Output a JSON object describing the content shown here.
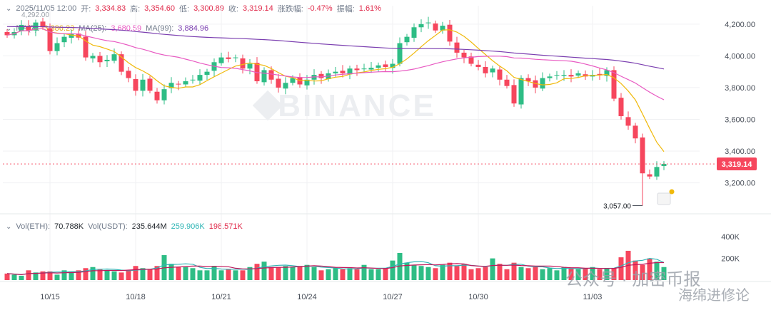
{
  "ohlc_header": {
    "datetime": "2025/11/05 12:00",
    "open_label": "开:",
    "open": "3,334.83",
    "high_label": "高:",
    "high": "3,354.60",
    "low_label": "低:",
    "low": "3,300.89",
    "close_label": "收:",
    "close": "3,319.14",
    "change_label": "涨跌幅:",
    "change": "-0.47%",
    "amplitude_label": "振幅:",
    "amplitude": "1.61%"
  },
  "ma_header": {
    "ma7_label": "MA(7):",
    "ma7": "3,386.23",
    "ma25_label": "MA(25):",
    "ma25": "3,680.59",
    "ma99_label": "MA(99):",
    "ma99": "3,884.96"
  },
  "vol_header": {
    "vol_eth_label": "Vol(ETH):",
    "vol_eth": "70.788K",
    "vol_usdt_label": "Vol(USDT):",
    "vol_usdt": "235.644M",
    "vol_ma1": "259.906K",
    "vol_ma2": "198.571K"
  },
  "watermark": "BINANCE",
  "overlay_watermark": {
    "left": "公众号 · 加密币报",
    "right": "海绵进修论"
  },
  "colors": {
    "up": "#2ebd85",
    "down": "#f6465d",
    "ma7": "#f0b90b",
    "ma25": "#e85ac2",
    "ma99": "#7b3fb0",
    "last_price_bg": "#f6465d"
  },
  "chart_data": {
    "type": "candlestick",
    "interval": "12h",
    "y_ticks": [
      "4,200.00",
      "4,000.00",
      "3,800.00",
      "3,600.00",
      "3,400.00",
      "3,200.00"
    ],
    "ylim": [
      3050,
      4280
    ],
    "volume_ticks": [
      "400K",
      "200K"
    ],
    "volume_ylim": [
      0,
      480
    ],
    "x_ticks": [
      {
        "label": "10/15",
        "index": 6
      },
      {
        "label": "10/18",
        "index": 18
      },
      {
        "label": "10/21",
        "index": 30
      },
      {
        "label": "10/24",
        "index": 42
      },
      {
        "label": "10/27",
        "index": 54
      },
      {
        "label": "10/30",
        "index": 66
      },
      {
        "label": "11/03",
        "index": 82
      }
    ],
    "last_price": "3,319.14",
    "last_price_value": 3319.14,
    "min_marker": "3,057.00",
    "min_marker_value": 3057,
    "min_marker_index": 89,
    "peak_marker": "4,292.00",
    "closes": [
      4130,
      4150,
      4195,
      4160,
      4210,
      4180,
      4030,
      4080,
      4120,
      4140,
      4115,
      3990,
      4000,
      3960,
      3975,
      4010,
      3900,
      3860,
      3780,
      3850,
      3780,
      3720,
      3790,
      3830,
      3820,
      3840,
      3850,
      3880,
      3900,
      3960,
      3990,
      3980,
      3990,
      3920,
      3950,
      3840,
      3910,
      3850,
      3800,
      3830,
      3860,
      3820,
      3850,
      3880,
      3860,
      3890,
      3900,
      3890,
      3920,
      3910,
      3920,
      3925,
      3940,
      3930,
      3950,
      4080,
      4120,
      4180,
      4200,
      4210,
      4160,
      4190,
      4090,
      4020,
      3990,
      3950,
      3930,
      3890,
      3920,
      3850,
      3810,
      3700,
      3860,
      3840,
      3800,
      3860,
      3870,
      3880,
      3880,
      3870,
      3890,
      3870,
      3880,
      3880,
      3910,
      3730,
      3620,
      3560,
      3480,
      3260,
      3240,
      3300,
      3319
    ],
    "volumes": [
      60,
      50,
      40,
      90,
      70,
      80,
      80,
      50,
      90,
      80,
      90,
      110,
      120,
      100,
      90,
      80,
      70,
      90,
      130,
      110,
      100,
      130,
      230,
      150,
      120,
      120,
      110,
      90,
      90,
      130,
      90,
      100,
      90,
      90,
      120,
      150,
      170,
      120,
      120,
      130,
      120,
      130,
      140,
      120,
      90,
      100,
      110,
      100,
      110,
      100,
      140,
      100,
      100,
      110,
      180,
      250,
      160,
      140,
      130,
      120,
      110,
      140,
      160,
      130,
      150,
      100,
      110,
      120,
      200,
      150,
      100,
      160,
      120,
      110,
      120,
      100,
      110,
      90,
      120,
      110,
      100,
      110,
      120,
      100,
      110,
      110,
      210,
      270,
      180,
      140,
      200,
      170,
      120
    ],
    "vol_y_from_values": true
  }
}
